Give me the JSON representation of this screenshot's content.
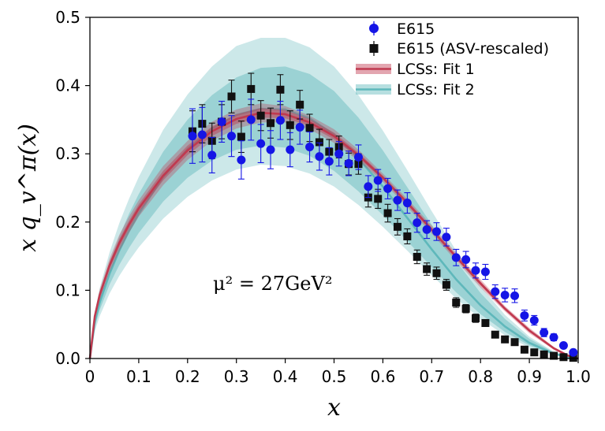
{
  "chart_data": {
    "type": "scatter",
    "xlabel": "x",
    "ylabel": "x q_v^π(x)",
    "xlim": [
      0.0,
      1.0
    ],
    "ylim": [
      0.0,
      0.5
    ],
    "xticks": [
      "0",
      "0.1",
      "0.2",
      "0.3",
      "0.4",
      "0.5",
      "0.6",
      "0.7",
      "0.8",
      "0.9",
      "1.0"
    ],
    "yticks": [
      "0.0",
      "0.1",
      "0.2",
      "0.3",
      "0.4",
      "0.5"
    ],
    "annotation": "μ² = 27GeV²",
    "grid": false,
    "legend_position": "top-right",
    "legend": [
      "E615",
      "E615 (ASV-rescaled)",
      "LCSs: Fit 1",
      "LCSs: Fit 2"
    ],
    "series": [
      {
        "name": "E615",
        "kind": "points",
        "marker": "circle",
        "color": "#1515e6",
        "x": [
          0.21,
          0.23,
          0.25,
          0.27,
          0.29,
          0.31,
          0.33,
          0.35,
          0.37,
          0.39,
          0.41,
          0.43,
          0.45,
          0.47,
          0.49,
          0.51,
          0.53,
          0.55,
          0.57,
          0.59,
          0.61,
          0.63,
          0.65,
          0.67,
          0.69,
          0.71,
          0.73,
          0.75,
          0.77,
          0.79,
          0.81,
          0.83,
          0.85,
          0.87,
          0.89,
          0.91,
          0.93,
          0.95,
          0.97,
          0.99
        ],
        "y": [
          0.326,
          0.328,
          0.298,
          0.347,
          0.326,
          0.291,
          0.35,
          0.315,
          0.306,
          0.349,
          0.306,
          0.339,
          0.31,
          0.296,
          0.289,
          0.3,
          0.286,
          0.295,
          0.252,
          0.261,
          0.249,
          0.232,
          0.228,
          0.199,
          0.189,
          0.186,
          0.178,
          0.148,
          0.145,
          0.129,
          0.127,
          0.098,
          0.093,
          0.092,
          0.063,
          0.056,
          0.038,
          0.031,
          0.019,
          0.009
        ],
        "yerr": [
          0.04,
          0.04,
          0.026,
          0.03,
          0.03,
          0.028,
          0.03,
          0.028,
          0.028,
          0.028,
          0.025,
          0.025,
          0.022,
          0.02,
          0.02,
          0.018,
          0.018,
          0.018,
          0.016,
          0.016,
          0.015,
          0.015,
          0.015,
          0.014,
          0.013,
          0.013,
          0.013,
          0.012,
          0.012,
          0.011,
          0.011,
          0.01,
          0.01,
          0.01,
          0.008,
          0.007,
          0.006,
          0.005,
          0.004,
          0.003
        ]
      },
      {
        "name": "E615 (ASV-rescaled)",
        "kind": "points",
        "marker": "square",
        "color": "#111111",
        "x": [
          0.21,
          0.23,
          0.25,
          0.27,
          0.29,
          0.31,
          0.33,
          0.35,
          0.37,
          0.39,
          0.41,
          0.43,
          0.45,
          0.47,
          0.49,
          0.51,
          0.53,
          0.55,
          0.57,
          0.59,
          0.61,
          0.63,
          0.65,
          0.67,
          0.69,
          0.71,
          0.73,
          0.75,
          0.77,
          0.79,
          0.81,
          0.83,
          0.85,
          0.87,
          0.89,
          0.91,
          0.93,
          0.95,
          0.97,
          0.99
        ],
        "y": [
          0.333,
          0.344,
          0.319,
          0.347,
          0.384,
          0.325,
          0.395,
          0.356,
          0.345,
          0.394,
          0.342,
          0.372,
          0.338,
          0.317,
          0.303,
          0.31,
          0.285,
          0.285,
          0.236,
          0.234,
          0.213,
          0.193,
          0.179,
          0.149,
          0.131,
          0.125,
          0.108,
          0.082,
          0.073,
          0.059,
          0.052,
          0.035,
          0.028,
          0.024,
          0.013,
          0.009,
          0.006,
          0.004,
          0.002,
          0.001
        ],
        "yerr": [
          0.03,
          0.028,
          0.026,
          0.025,
          0.024,
          0.023,
          0.023,
          0.022,
          0.022,
          0.022,
          0.021,
          0.021,
          0.02,
          0.019,
          0.018,
          0.016,
          0.016,
          0.015,
          0.014,
          0.014,
          0.013,
          0.012,
          0.011,
          0.01,
          0.009,
          0.009,
          0.008,
          0.007,
          0.006,
          0.006,
          0.005,
          0.004,
          0.004,
          0.003,
          0.002,
          0.002,
          0.001,
          0.001,
          0.001,
          0.001
        ]
      },
      {
        "name": "LCSs: Fit 1",
        "kind": "band",
        "color": "#c0394f",
        "x": [
          0.0,
          0.01,
          0.02,
          0.04,
          0.06,
          0.08,
          0.1,
          0.15,
          0.2,
          0.25,
          0.3,
          0.35,
          0.4,
          0.45,
          0.5,
          0.55,
          0.6,
          0.65,
          0.7,
          0.75,
          0.8,
          0.85,
          0.9,
          0.95,
          0.98,
          1.0
        ],
        "center": [
          0.0,
          0.062,
          0.093,
          0.136,
          0.169,
          0.196,
          0.22,
          0.268,
          0.305,
          0.333,
          0.351,
          0.36,
          0.358,
          0.346,
          0.326,
          0.298,
          0.265,
          0.228,
          0.189,
          0.149,
          0.11,
          0.073,
          0.041,
          0.015,
          0.004,
          0.0
        ],
        "inner_lower": [
          0.0,
          0.059,
          0.089,
          0.131,
          0.163,
          0.19,
          0.214,
          0.261,
          0.298,
          0.326,
          0.344,
          0.353,
          0.352,
          0.341,
          0.321,
          0.294,
          0.262,
          0.225,
          0.186,
          0.146,
          0.107,
          0.071,
          0.039,
          0.014,
          0.003,
          0.0
        ],
        "inner_upper": [
          0.0,
          0.065,
          0.097,
          0.141,
          0.175,
          0.202,
          0.226,
          0.275,
          0.312,
          0.34,
          0.358,
          0.367,
          0.364,
          0.351,
          0.331,
          0.302,
          0.268,
          0.231,
          0.192,
          0.152,
          0.113,
          0.075,
          0.043,
          0.016,
          0.005,
          0.0
        ],
        "outer_lower": [
          0.0,
          0.056,
          0.085,
          0.126,
          0.157,
          0.184,
          0.208,
          0.254,
          0.291,
          0.319,
          0.337,
          0.346,
          0.346,
          0.336,
          0.316,
          0.29,
          0.259,
          0.222,
          0.183,
          0.143,
          0.104,
          0.069,
          0.037,
          0.013,
          0.003,
          0.0
        ],
        "outer_upper": [
          0.0,
          0.068,
          0.101,
          0.146,
          0.181,
          0.208,
          0.232,
          0.282,
          0.319,
          0.347,
          0.365,
          0.374,
          0.37,
          0.356,
          0.336,
          0.306,
          0.271,
          0.234,
          0.195,
          0.155,
          0.116,
          0.077,
          0.045,
          0.017,
          0.005,
          0.0
        ]
      },
      {
        "name": "LCSs: Fit 2",
        "kind": "band",
        "color": "#5fb8bb",
        "x": [
          0.0,
          0.01,
          0.02,
          0.04,
          0.06,
          0.08,
          0.1,
          0.15,
          0.2,
          0.25,
          0.3,
          0.35,
          0.4,
          0.45,
          0.5,
          0.55,
          0.6,
          0.65,
          0.7,
          0.75,
          0.8,
          0.85,
          0.9,
          0.95,
          0.98,
          1.0
        ],
        "center": [
          0.0,
          0.054,
          0.082,
          0.124,
          0.158,
          0.187,
          0.212,
          0.266,
          0.307,
          0.337,
          0.357,
          0.366,
          0.365,
          0.352,
          0.328,
          0.293,
          0.252,
          0.206,
          0.16,
          0.116,
          0.078,
          0.047,
          0.023,
          0.007,
          0.002,
          0.0
        ],
        "inner_lower": [
          0.0,
          0.046,
          0.071,
          0.108,
          0.137,
          0.162,
          0.184,
          0.23,
          0.265,
          0.29,
          0.306,
          0.312,
          0.309,
          0.297,
          0.275,
          0.245,
          0.21,
          0.172,
          0.134,
          0.097,
          0.065,
          0.039,
          0.019,
          0.006,
          0.001,
          0.0
        ],
        "inner_upper": [
          0.0,
          0.062,
          0.094,
          0.141,
          0.179,
          0.212,
          0.241,
          0.303,
          0.35,
          0.386,
          0.412,
          0.426,
          0.428,
          0.417,
          0.392,
          0.353,
          0.305,
          0.251,
          0.196,
          0.143,
          0.096,
          0.058,
          0.029,
          0.009,
          0.002,
          0.0
        ],
        "outer_lower": [
          0.0,
          0.04,
          0.062,
          0.095,
          0.121,
          0.143,
          0.163,
          0.205,
          0.237,
          0.261,
          0.277,
          0.284,
          0.282,
          0.271,
          0.252,
          0.225,
          0.193,
          0.158,
          0.122,
          0.088,
          0.058,
          0.034,
          0.016,
          0.005,
          0.001,
          0.0
        ],
        "outer_upper": [
          0.0,
          0.068,
          0.103,
          0.155,
          0.198,
          0.234,
          0.266,
          0.335,
          0.387,
          0.428,
          0.458,
          0.47,
          0.47,
          0.456,
          0.428,
          0.386,
          0.334,
          0.276,
          0.216,
          0.158,
          0.106,
          0.064,
          0.032,
          0.01,
          0.003,
          0.0
        ]
      }
    ]
  }
}
